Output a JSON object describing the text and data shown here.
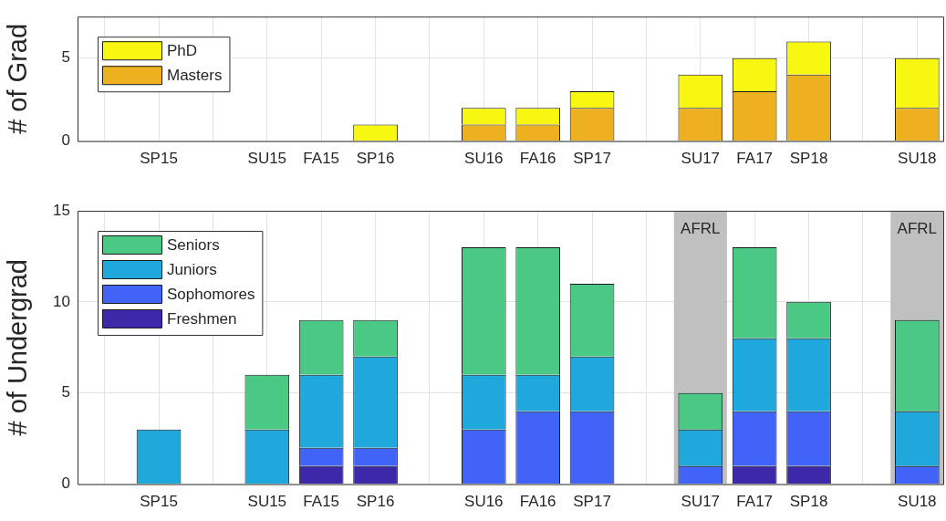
{
  "chart_data": [
    {
      "type": "bar",
      "stacked": true,
      "ylabel": "# of Grad",
      "categories": [
        null,
        "SP15",
        null,
        "SU15",
        "FA15",
        "SP16",
        null,
        "SU16",
        "FA16",
        "SP17",
        null,
        "SU17",
        "FA17",
        "SP18",
        null,
        "SU18"
      ],
      "ylim": [
        0,
        7.5
      ],
      "yticks": [
        0,
        5
      ],
      "grid": true,
      "legend": "top left",
      "series": [
        {
          "name": "Masters",
          "color": "#edb120",
          "values": [
            0,
            0,
            0,
            0,
            0,
            0,
            0,
            1,
            1,
            2,
            0,
            2,
            3,
            4,
            0,
            2
          ]
        },
        {
          "name": "PhD",
          "color": "#f7f712",
          "values": [
            0,
            0,
            0,
            0,
            0,
            1,
            0,
            1,
            1,
            1,
            0,
            2,
            2,
            2,
            0,
            3
          ]
        }
      ]
    },
    {
      "type": "bar",
      "stacked": true,
      "ylabel": "# of Undergrad",
      "categories": [
        null,
        "SP15",
        null,
        "SU15",
        "FA15",
        "SP16",
        null,
        "SU16",
        "FA16",
        "SP17",
        null,
        "SU17",
        "FA17",
        "SP18",
        null,
        "SU18"
      ],
      "ylim": [
        0,
        15
      ],
      "yticks": [
        0,
        5,
        10,
        15
      ],
      "grid": true,
      "legend": "top left",
      "bands": [
        {
          "axis": "x",
          "from": "SU17",
          "to": "SU17",
          "label": "AFRL",
          "color": "#c0c0c0"
        },
        {
          "axis": "x",
          "from": "SU18",
          "to": "SU18",
          "label": "AFRL",
          "color": "#c0c0c0"
        }
      ],
      "series": [
        {
          "name": "Freshmen",
          "color": "#3c28a8",
          "values": [
            0,
            0,
            0,
            0,
            1,
            1,
            0,
            0,
            0,
            0,
            0,
            0,
            1,
            1,
            0,
            0
          ]
        },
        {
          "name": "Sophomores",
          "color": "#4263f8",
          "values": [
            0,
            0,
            0,
            0,
            1,
            1,
            0,
            3,
            4,
            4,
            0,
            1,
            3,
            3,
            0,
            1
          ]
        },
        {
          "name": "Juniors",
          "color": "#1ea8dc",
          "values": [
            0,
            3,
            0,
            3,
            4,
            5,
            0,
            3,
            2,
            3,
            0,
            2,
            4,
            4,
            0,
            3
          ]
        },
        {
          "name": "Seniors",
          "color": "#4ac985",
          "values": [
            0,
            0,
            0,
            3,
            3,
            2,
            0,
            7,
            7,
            4,
            0,
            2,
            5,
            2,
            0,
            5
          ]
        }
      ]
    }
  ]
}
